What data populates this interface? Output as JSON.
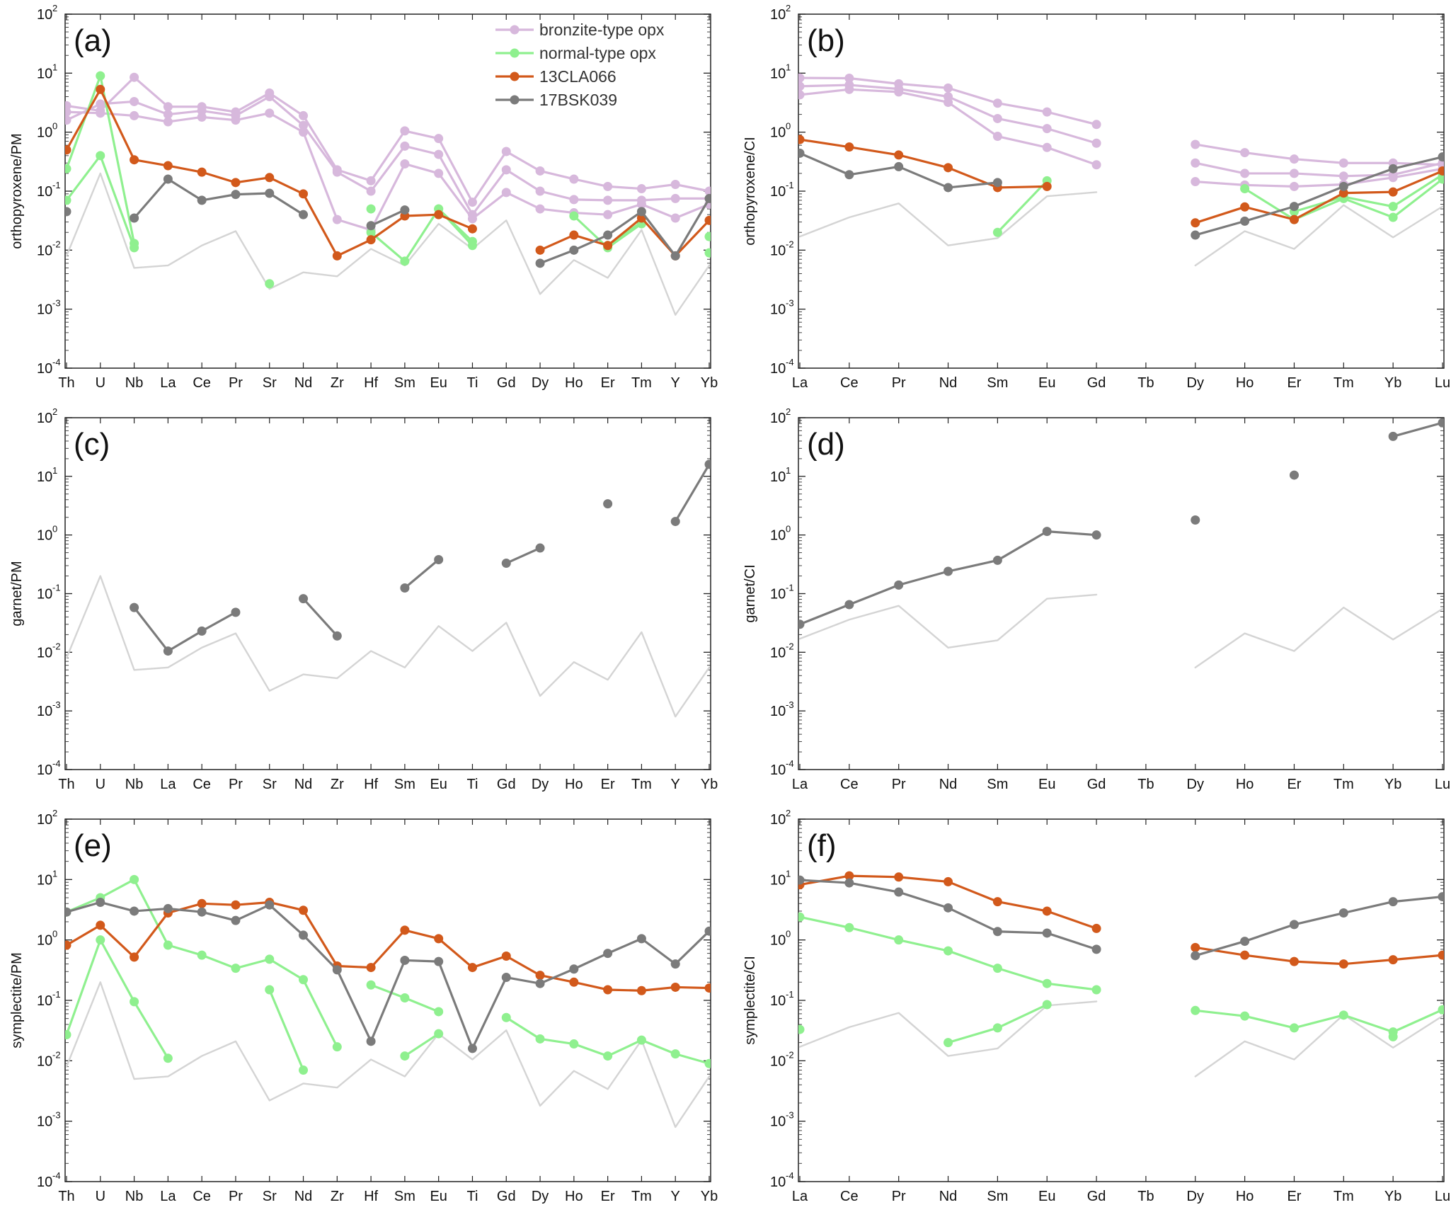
{
  "figure": {
    "legend": {
      "entries": [
        {
          "label": "bronzite-type opx",
          "color": "#d7b8dc"
        },
        {
          "label": "normal-type opx",
          "color": "#8ff08f"
        },
        {
          "label": "13CLA066",
          "color": "#d2591b"
        },
        {
          "label": "17BSK039",
          "color": "#7b7b7b"
        }
      ]
    },
    "reference_color": "#d4d4d4"
  },
  "chart_data": [
    {
      "type": "line",
      "panel": "(a)",
      "ylabel": "orthopyroxene/PM",
      "yscale": "log",
      "ylim": [
        0.0001,
        100
      ],
      "categories": [
        "Th",
        "U",
        "Nb",
        "La",
        "Ce",
        "Pr",
        "Sr",
        "Nd",
        "Zr",
        "Hf",
        "Sm",
        "Eu",
        "Ti",
        "Gd",
        "Dy",
        "Ho",
        "Er",
        "Tm",
        "Y",
        "Yb"
      ],
      "reference": [
        0.008,
        0.2,
        0.005,
        0.0055,
        0.012,
        0.021,
        0.0022,
        0.0042,
        0.0036,
        0.0105,
        0.0055,
        0.028,
        0.0105,
        0.032,
        0.0018,
        0.0068,
        0.0034,
        0.022,
        0.0008,
        0.0055
      ],
      "series": [
        {
          "group": "bronzite-type opx",
          "color": "#d7b8dc",
          "values": [
            2.8,
            2.3,
            8.5,
            2.7,
            2.7,
            2.2,
            4.6,
            1.9,
            0.23,
            0.15,
            1.05,
            0.78,
            0.065,
            0.47,
            0.22,
            0.16,
            0.12,
            0.11,
            0.13,
            0.1
          ]
        },
        {
          "group": "bronzite-type opx",
          "color": "#d7b8dc",
          "values": [
            1.6,
            3.0,
            3.3,
            2.0,
            2.3,
            1.9,
            4.0,
            1.3,
            0.21,
            0.1,
            0.58,
            0.42,
            0.04,
            0.23,
            0.1,
            0.072,
            0.07,
            0.07,
            0.075,
            0.075
          ]
        },
        {
          "group": "bronzite-type opx",
          "color": "#d7b8dc",
          "values": [
            2.2,
            2.1,
            1.9,
            1.5,
            1.8,
            1.6,
            2.1,
            1.0,
            0.033,
            0.022,
            0.29,
            0.2,
            0.034,
            0.095,
            0.05,
            0.043,
            0.04,
            0.06,
            0.035,
            0.06
          ]
        },
        {
          "group": "normal-type opx",
          "color": "#8ff08f",
          "values": [
            0.24,
            9.0,
            0.013,
            null,
            null,
            null,
            0.0027,
            null,
            null,
            0.05,
            null,
            0.05,
            0.014,
            null,
            null,
            0.038,
            0.011,
            0.028,
            null,
            0.017
          ]
        },
        {
          "group": "normal-type opx",
          "color": "#8ff08f",
          "values": [
            0.07,
            0.4,
            0.011,
            null,
            null,
            null,
            null,
            null,
            null,
            0.02,
            0.0065,
            0.05,
            0.012,
            null,
            null,
            null,
            0.012,
            0.03,
            null,
            0.009
          ]
        },
        {
          "group": "13CLA066",
          "color": "#d2591b",
          "values": [
            0.5,
            5.3,
            0.34,
            0.27,
            0.21,
            0.14,
            0.17,
            0.09,
            0.008,
            0.015,
            0.038,
            0.04,
            0.023,
            null,
            0.01,
            0.018,
            0.012,
            0.035,
            0.008,
            0.032
          ]
        },
        {
          "group": "17BSK039",
          "color": "#7b7b7b",
          "values": [
            0.045,
            null,
            0.035,
            0.16,
            0.07,
            0.088,
            0.092,
            0.04,
            null,
            0.026,
            0.048,
            null,
            null,
            null,
            0.006,
            0.01,
            0.018,
            0.045,
            0.008,
            0.075
          ]
        }
      ]
    },
    {
      "type": "line",
      "panel": "(b)",
      "ylabel": "orthopyroxene/CI",
      "yscale": "log",
      "ylim": [
        0.0001,
        100
      ],
      "categories": [
        "La",
        "Ce",
        "Pr",
        "Nd",
        "Sm",
        "Eu",
        "Gd",
        "Tb",
        "Dy",
        "Ho",
        "Er",
        "Tm",
        "Yb",
        "Lu"
      ],
      "reference": [
        0.017,
        0.036,
        0.062,
        0.012,
        0.016,
        0.082,
        0.096,
        null,
        0.0055,
        0.021,
        0.0105,
        0.058,
        0.0165,
        0.055
      ],
      "series": [
        {
          "group": "bronzite-type opx",
          "color": "#d7b8dc",
          "values": [
            8.3,
            8.2,
            6.6,
            5.6,
            3.1,
            2.2,
            1.35,
            null,
            0.62,
            0.45,
            0.35,
            0.3,
            0.3,
            0.28
          ]
        },
        {
          "group": "bronzite-type opx",
          "color": "#d7b8dc",
          "values": [
            6.0,
            6.3,
            5.4,
            4.0,
            1.7,
            1.15,
            0.65,
            null,
            0.3,
            0.2,
            0.2,
            0.18,
            0.19,
            0.3
          ]
        },
        {
          "group": "bronzite-type opx",
          "color": "#d7b8dc",
          "values": [
            4.3,
            5.3,
            4.8,
            3.2,
            0.85,
            0.55,
            0.28,
            null,
            0.145,
            0.127,
            0.12,
            0.13,
            0.17,
            0.24
          ]
        },
        {
          "group": "normal-type opx",
          "color": "#8ff08f",
          "values": [
            null,
            null,
            null,
            null,
            0.02,
            0.15,
            null,
            null,
            null,
            0.11,
            0.033,
            0.075,
            0.036,
            0.16
          ]
        },
        {
          "group": "normal-type opx",
          "color": "#8ff08f",
          "values": [
            null,
            null,
            null,
            null,
            null,
            null,
            null,
            null,
            null,
            null,
            0.045,
            0.08,
            0.055,
            0.19
          ]
        },
        {
          "group": "13CLA066",
          "color": "#d2591b",
          "values": [
            0.75,
            0.56,
            0.41,
            0.25,
            0.115,
            0.12,
            null,
            null,
            0.029,
            0.054,
            0.033,
            0.093,
            0.097,
            0.22
          ]
        },
        {
          "group": "17BSK039",
          "color": "#7b7b7b",
          "values": [
            0.44,
            0.19,
            0.26,
            0.115,
            0.14,
            null,
            null,
            null,
            0.018,
            0.031,
            0.055,
            0.12,
            0.24,
            0.38
          ]
        }
      ]
    },
    {
      "type": "line",
      "panel": "(c)",
      "ylabel": "garnet/PM",
      "yscale": "log",
      "ylim": [
        0.0001,
        100
      ],
      "categories": [
        "Th",
        "U",
        "Nb",
        "La",
        "Ce",
        "Pr",
        "Sr",
        "Nd",
        "Zr",
        "Hf",
        "Sm",
        "Eu",
        "Ti",
        "Gd",
        "Dy",
        "Ho",
        "Er",
        "Tm",
        "Y",
        "Yb"
      ],
      "reference": [
        0.008,
        0.2,
        0.005,
        0.0055,
        0.012,
        0.021,
        0.0022,
        0.0042,
        0.0036,
        0.0105,
        0.0055,
        0.028,
        0.0105,
        0.032,
        0.0018,
        0.0068,
        0.0034,
        0.022,
        0.0008,
        0.0055
      ],
      "series": [
        {
          "group": "17BSK039",
          "color": "#7b7b7b",
          "values": [
            null,
            null,
            0.058,
            0.0105,
            0.023,
            0.048,
            null,
            0.082,
            0.019,
            null,
            0.125,
            0.38,
            null,
            0.33,
            0.6,
            null,
            3.4,
            null,
            1.7,
            16
          ]
        }
      ]
    },
    {
      "type": "line",
      "panel": "(d)",
      "ylabel": "garnet/CI",
      "yscale": "log",
      "ylim": [
        0.0001,
        100
      ],
      "categories": [
        "La",
        "Ce",
        "Pr",
        "Nd",
        "Sm",
        "Eu",
        "Gd",
        "Tb",
        "Dy",
        "Ho",
        "Er",
        "Tm",
        "Yb",
        "Lu"
      ],
      "reference": [
        0.017,
        0.036,
        0.062,
        0.012,
        0.016,
        0.082,
        0.096,
        null,
        0.0055,
        0.021,
        0.0105,
        0.058,
        0.0165,
        0.055
      ],
      "series": [
        {
          "group": "17BSK039",
          "color": "#7b7b7b",
          "values": [
            0.03,
            0.065,
            0.14,
            0.24,
            0.37,
            1.15,
            1.0,
            null,
            1.8,
            null,
            10.5,
            null,
            48,
            82
          ]
        }
      ]
    },
    {
      "type": "line",
      "panel": "(e)",
      "ylabel": "symplectite/PM",
      "yscale": "log",
      "ylim": [
        0.0001,
        100
      ],
      "categories": [
        "Th",
        "U",
        "Nb",
        "La",
        "Ce",
        "Pr",
        "Sr",
        "Nd",
        "Zr",
        "Hf",
        "Sm",
        "Eu",
        "Ti",
        "Gd",
        "Dy",
        "Ho",
        "Er",
        "Tm",
        "Y",
        "Yb"
      ],
      "reference": [
        0.008,
        0.2,
        0.005,
        0.0055,
        0.012,
        0.021,
        0.0022,
        0.0042,
        0.0036,
        0.0105,
        0.0055,
        0.028,
        0.0105,
        0.032,
        0.0018,
        0.0068,
        0.0034,
        0.022,
        0.0008,
        0.0055
      ],
      "series": [
        {
          "group": "normal-type opx",
          "color": "#8ff08f",
          "values": [
            2.9,
            5.0,
            10.0,
            0.82,
            0.56,
            0.34,
            0.48,
            0.22,
            0.017,
            null,
            0.012,
            0.028,
            null,
            null,
            null,
            null,
            null,
            null,
            null,
            null
          ]
        },
        {
          "group": "normal-type opx",
          "color": "#8ff08f",
          "values": [
            0.027,
            1.0,
            0.095,
            0.011,
            null,
            null,
            0.15,
            0.007,
            null,
            0.18,
            0.11,
            0.065,
            null,
            0.052,
            0.023,
            0.019,
            0.012,
            0.022,
            0.013,
            0.009
          ]
        },
        {
          "group": "13CLA066",
          "color": "#d2591b",
          "values": [
            0.82,
            1.75,
            0.52,
            2.8,
            4.0,
            3.8,
            4.2,
            3.1,
            0.37,
            0.35,
            1.45,
            1.05,
            0.35,
            0.54,
            0.26,
            0.2,
            0.15,
            0.145,
            0.165,
            0.16
          ]
        },
        {
          "group": "17BSK039",
          "color": "#7b7b7b",
          "values": [
            2.9,
            4.2,
            3.0,
            3.3,
            2.9,
            2.1,
            3.8,
            1.2,
            0.32,
            0.021,
            0.46,
            0.44,
            0.016,
            0.24,
            0.19,
            0.33,
            0.6,
            1.05,
            0.4,
            1.4
          ]
        }
      ]
    },
    {
      "type": "line",
      "panel": "(f)",
      "ylabel": "symplectite/CI",
      "yscale": "log",
      "ylim": [
        0.0001,
        100
      ],
      "categories": [
        "La",
        "Ce",
        "Pr",
        "Nd",
        "Sm",
        "Eu",
        "Gd",
        "Tb",
        "Dy",
        "Ho",
        "Er",
        "Tm",
        "Yb",
        "Lu"
      ],
      "reference": [
        0.017,
        0.036,
        0.062,
        0.012,
        0.016,
        0.082,
        0.096,
        null,
        0.0055,
        0.021,
        0.0105,
        0.058,
        0.0165,
        0.055
      ],
      "series": [
        {
          "group": "normal-type opx",
          "color": "#8ff08f",
          "values": [
            2.4,
            1.6,
            1.0,
            0.66,
            0.34,
            0.19,
            0.15,
            null,
            null,
            null,
            null,
            null,
            null,
            null
          ]
        },
        {
          "group": "normal-type opx",
          "color": "#8ff08f",
          "values": [
            0.033,
            null,
            null,
            0.02,
            0.035,
            0.085,
            null,
            null,
            0.068,
            0.055,
            0.035,
            0.057,
            0.03,
            0.07
          ]
        },
        {
          "group": "normal-type opx",
          "color": "#8ff08f",
          "values": [
            null,
            null,
            null,
            null,
            null,
            null,
            null,
            null,
            null,
            null,
            null,
            null,
            0.025,
            null
          ]
        },
        {
          "group": "13CLA066",
          "color": "#d2591b",
          "values": [
            8.2,
            11.5,
            11.0,
            9.2,
            4.3,
            3.0,
            1.55,
            null,
            0.75,
            0.56,
            0.44,
            0.4,
            0.47,
            0.56
          ]
        },
        {
          "group": "17BSK039",
          "color": "#7b7b7b",
          "values": [
            9.8,
            8.8,
            6.2,
            3.4,
            1.38,
            1.3,
            0.7,
            null,
            0.55,
            0.95,
            1.8,
            2.8,
            4.3,
            5.2
          ]
        }
      ]
    }
  ]
}
